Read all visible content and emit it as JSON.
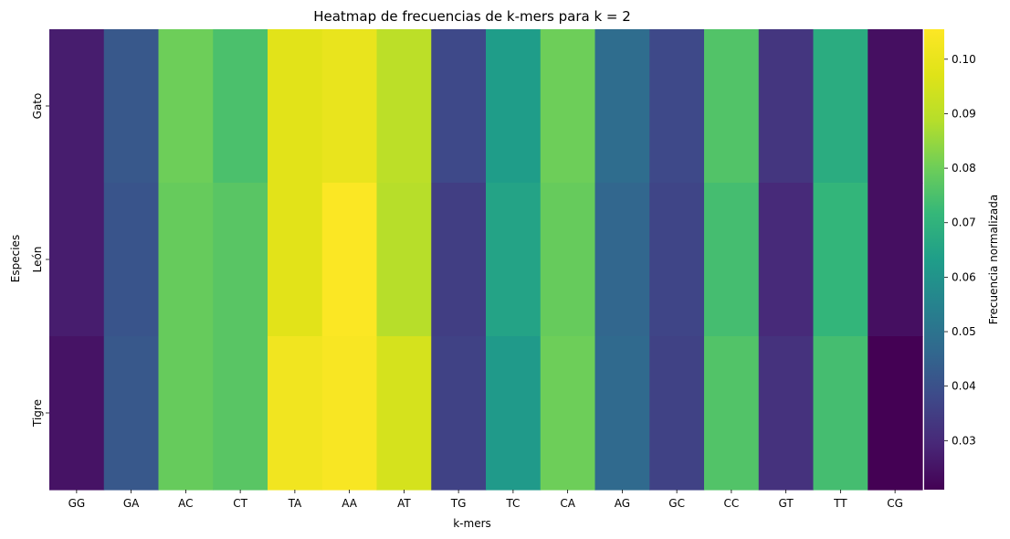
{
  "chart_data": {
    "type": "heatmap",
    "title": "Heatmap de frecuencias de k-mers para k = 2",
    "xlabel": "k-mers",
    "ylabel": "Especies",
    "colorbar_label": "Frecuencia normalizada",
    "colormap": "viridis",
    "x_categories": [
      "GG",
      "GA",
      "AC",
      "CT",
      "TA",
      "AA",
      "AT",
      "TG",
      "TC",
      "CA",
      "AG",
      "GC",
      "CC",
      "GT",
      "TT",
      "CG"
    ],
    "y_categories": [
      "Gato",
      "León",
      "Tigre"
    ],
    "values": [
      [
        0.027,
        0.042,
        0.08,
        0.075,
        0.098,
        0.1,
        0.09,
        0.038,
        0.063,
        0.08,
        0.048,
        0.038,
        0.076,
        0.033,
        0.068,
        0.024
      ],
      [
        0.027,
        0.041,
        0.079,
        0.077,
        0.098,
        0.105,
        0.089,
        0.035,
        0.065,
        0.079,
        0.046,
        0.037,
        0.074,
        0.03,
        0.071,
        0.024
      ],
      [
        0.025,
        0.042,
        0.079,
        0.077,
        0.102,
        0.104,
        0.095,
        0.036,
        0.062,
        0.08,
        0.047,
        0.036,
        0.076,
        0.032,
        0.074,
        0.021
      ]
    ],
    "colorbar_range": [
      0.021,
      0.1055
    ],
    "colorbar_ticks": [
      "0.03",
      "0.04",
      "0.05",
      "0.06",
      "0.07",
      "0.08",
      "0.09",
      "0.10"
    ]
  }
}
